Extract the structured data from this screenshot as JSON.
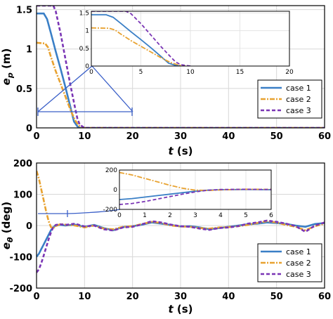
{
  "chart_data": [
    {
      "type": "line",
      "xlabel": "t (s)",
      "ylabel": "e_p (m)",
      "xlim": [
        0,
        60
      ],
      "ylim": [
        0,
        1.55
      ],
      "xticks": [
        0,
        10,
        20,
        30,
        40,
        50,
        60
      ],
      "yticks": [
        0,
        0.5,
        1,
        1.5
      ],
      "xticklabels": [
        "0",
        "10",
        "20",
        "30",
        "40",
        "50",
        "60"
      ],
      "yticklabels": [
        "0",
        "0.5",
        "1",
        "1.5"
      ],
      "grid": true,
      "legend_position": "lower-right",
      "series": [
        {
          "name": "case 1",
          "color": "#3a7fc6",
          "style": "solid",
          "x": [
            0,
            1.5,
            2.2,
            3,
            4,
            5,
            6,
            7,
            7.8,
            8.5,
            9,
            60
          ],
          "y": [
            1.45,
            1.45,
            1.38,
            1.2,
            0.97,
            0.75,
            0.52,
            0.28,
            0.08,
            0.02,
            0,
            0
          ]
        },
        {
          "name": "case 2",
          "color": "#e8a230",
          "style": "dashdot",
          "x": [
            0,
            1.8,
            2.4,
            3,
            4,
            5,
            6,
            7,
            8,
            8.8,
            9.5,
            60
          ],
          "y": [
            1.08,
            1.07,
            1.02,
            0.9,
            0.72,
            0.56,
            0.4,
            0.24,
            0.1,
            0.03,
            0,
            0
          ]
        },
        {
          "name": "case 3",
          "color": "#7a35b5",
          "style": "dashed",
          "x": [
            0,
            3.5,
            4,
            5,
            6,
            7,
            8,
            8.5,
            9,
            10,
            60
          ],
          "y": [
            1.55,
            1.55,
            1.48,
            1.2,
            0.88,
            0.56,
            0.26,
            0.12,
            0.04,
            0,
            0
          ]
        }
      ],
      "inset": {
        "xlim": [
          0,
          20
        ],
        "ylim": [
          0,
          1.55
        ],
        "xticks": [
          0,
          5,
          10,
          15,
          20
        ],
        "yticks": [
          0,
          0.5,
          1,
          1.5
        ],
        "xticklabels": [
          "0",
          "5",
          "10",
          "15",
          "20"
        ],
        "yticklabels": [
          "0",
          "0.5",
          "1",
          "1.5"
        ],
        "zoom_range": {
          "x": [
            0,
            20
          ],
          "y": [
            0.15,
            0.15
          ]
        }
      }
    },
    {
      "type": "line",
      "xlabel": "t (s)",
      "ylabel": "e_θ (deg)",
      "xlim": [
        0,
        60
      ],
      "ylim": [
        -200,
        200
      ],
      "xticks": [
        0,
        10,
        20,
        30,
        40,
        50,
        60
      ],
      "yticks": [
        -200,
        -100,
        0,
        100,
        200
      ],
      "xticklabels": [
        "0",
        "10",
        "20",
        "30",
        "40",
        "50",
        "60"
      ],
      "yticklabels": [
        "-200",
        "-100",
        "0",
        "100",
        "200"
      ],
      "grid": true,
      "legend_position": "lower-right",
      "series": [
        {
          "name": "case 1",
          "color": "#3a7fc6",
          "style": "solid",
          "x": [
            0,
            0.5,
            1,
            1.5,
            2,
            2.5,
            3,
            3.5,
            4,
            5,
            6,
            8,
            10,
            12,
            14,
            16,
            18,
            20,
            22,
            24,
            26,
            28,
            30,
            32,
            34,
            36,
            38,
            40,
            42,
            44,
            46,
            48,
            50,
            52,
            54,
            56,
            58,
            60
          ],
          "y": [
            -100,
            -90,
            -75,
            -60,
            -45,
            -30,
            -15,
            -5,
            0,
            2,
            0,
            3,
            -4,
            2,
            -8,
            -15,
            -5,
            -2,
            3,
            10,
            6,
            2,
            -3,
            -2,
            -6,
            -12,
            -8,
            -4,
            0,
            4,
            6,
            10,
            8,
            5,
            0,
            -4,
            5,
            8
          ]
        },
        {
          "name": "case 2",
          "color": "#e8a230",
          "style": "dashdot",
          "x": [
            0,
            0.5,
            1,
            1.5,
            2,
            2.5,
            3,
            3.5,
            4,
            5,
            6,
            8,
            10,
            12,
            14,
            16,
            18,
            20,
            22,
            24,
            26,
            28,
            30,
            32,
            34,
            36,
            38,
            40,
            42,
            44,
            46,
            48,
            50,
            52,
            54,
            56,
            58,
            60
          ],
          "y": [
            175,
            150,
            115,
            80,
            45,
            15,
            -5,
            -8,
            -2,
            5,
            3,
            0,
            -6,
            0,
            -10,
            -12,
            -4,
            -2,
            5,
            12,
            8,
            0,
            -3,
            -4,
            -8,
            -10,
            -6,
            -5,
            -2,
            2,
            8,
            14,
            10,
            2,
            -4,
            -15,
            -2,
            6
          ]
        },
        {
          "name": "case 3",
          "color": "#7a35b5",
          "style": "dashed",
          "x": [
            0,
            0.5,
            1,
            1.5,
            2,
            2.5,
            3,
            3.5,
            4,
            5,
            6,
            8,
            10,
            12,
            14,
            16,
            18,
            20,
            22,
            24,
            26,
            28,
            30,
            32,
            34,
            36,
            38,
            40,
            42,
            44,
            46,
            48,
            50,
            52,
            54,
            56,
            58,
            60
          ],
          "y": [
            -150,
            -140,
            -120,
            -95,
            -70,
            -45,
            -22,
            -5,
            2,
            4,
            2,
            6,
            -3,
            0,
            -12,
            -16,
            -6,
            -4,
            4,
            14,
            10,
            3,
            -2,
            -4,
            -10,
            -14,
            -8,
            -6,
            -2,
            6,
            10,
            16,
            12,
            6,
            -2,
            -20,
            0,
            10
          ]
        }
      ],
      "inset": {
        "xlim": [
          0,
          6
        ],
        "ylim": [
          -200,
          200
        ],
        "xticks": [
          0,
          1,
          2,
          3,
          4,
          5,
          6
        ],
        "yticks": [
          -200,
          0,
          200
        ],
        "xticklabels": [
          "0",
          "1",
          "2",
          "3",
          "4",
          "5",
          "6"
        ],
        "yticklabels": [
          "-200",
          "0",
          "200"
        ],
        "zoom_range": {
          "x": [
            0,
            6
          ],
          "y": [
            35,
            35
          ]
        }
      }
    }
  ]
}
